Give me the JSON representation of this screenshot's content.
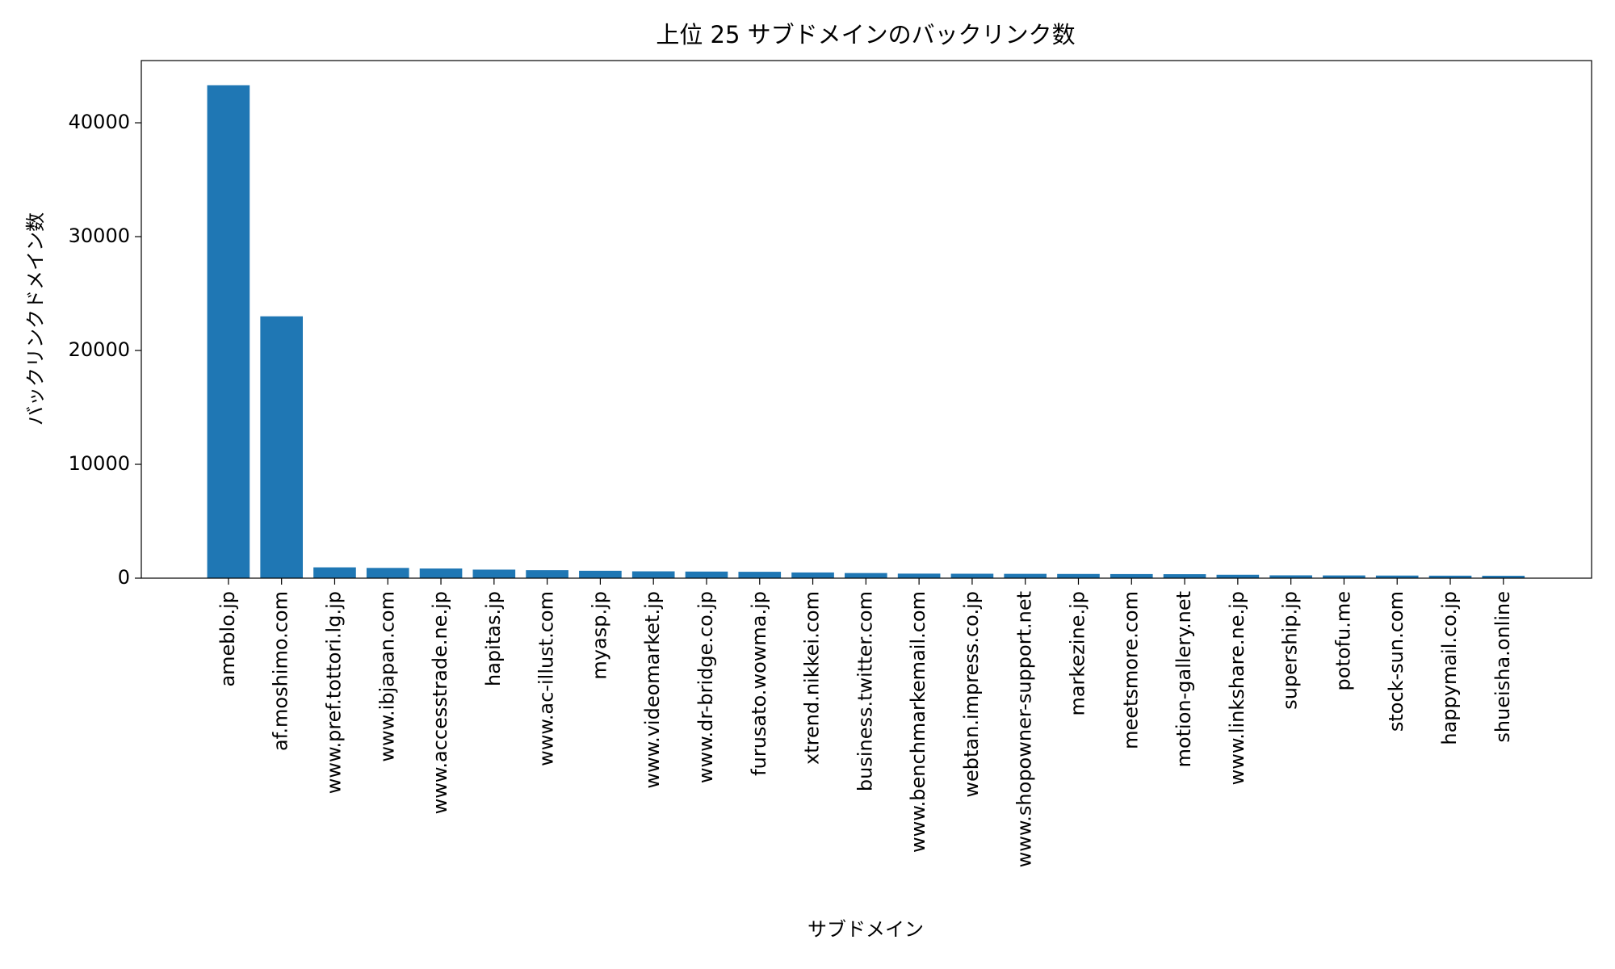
{
  "chart_data": {
    "type": "bar",
    "title": "上位 25 サブドメインのバックリンク数",
    "x_label": "サブドメイン",
    "y_label": "バックリンクドメイン数",
    "categories": [
      "ameblo.jp",
      "af.moshimo.com",
      "www.pref.tottori.lg.jp",
      "www.ibjapan.com",
      "www.accesstrade.ne.jp",
      "hapitas.jp",
      "www.ac-illust.com",
      "myasp.jp",
      "www.videomarket.jp",
      "www.dr-bridge.co.jp",
      "furusato.wowma.jp",
      "xtrend.nikkei.com",
      "business.twitter.com",
      "www.benchmarkemail.com",
      "webtan.impress.co.jp",
      "www.shopowner-support.net",
      "markezine.jp",
      "meetsmore.com",
      "motion-gallery.net",
      "www.linkshare.ne.jp",
      "supership.jp",
      "potofu.me",
      "stock-sun.com",
      "happymail.co.jp",
      "shueisha.online"
    ],
    "values": [
      43300,
      23000,
      950,
      900,
      850,
      750,
      700,
      650,
      600,
      580,
      560,
      500,
      450,
      400,
      390,
      380,
      370,
      360,
      350,
      300,
      250,
      240,
      230,
      220,
      210
    ],
    "color": "#1f77b4",
    "ylim": [
      0,
      45465
    ],
    "yticks": [
      0,
      10000,
      20000,
      30000,
      40000
    ],
    "grid": false
  }
}
